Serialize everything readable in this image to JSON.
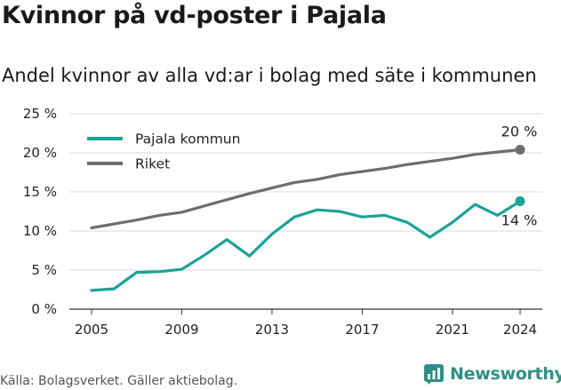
{
  "title": "Kvinnor på vd-poster i Pajala",
  "subtitle": "Andel kvinnor av alla vd:ar i bolag med säte i kommunen",
  "footer": {
    "source": "Källa: Bolagsverket. Gäller aktiebolag."
  },
  "brand": {
    "name": "Newsworthy",
    "color": "#2f8f85",
    "icon": "newsworthy-logo-icon"
  },
  "chart_data": {
    "type": "line",
    "title": "Kvinnor på vd-poster i Pajala",
    "subtitle": "Andel kvinnor av alla vd:ar i bolag med säte i kommunen",
    "xlabel": "",
    "ylabel": "",
    "x": [
      2005,
      2006,
      2007,
      2008,
      2009,
      2010,
      2011,
      2012,
      2013,
      2014,
      2015,
      2016,
      2017,
      2018,
      2019,
      2020,
      2021,
      2022,
      2023,
      2024
    ],
    "x_ticks": [
      "2005",
      "2009",
      "2013",
      "2017",
      "2021",
      "2024"
    ],
    "y_ticks": [
      "0 %",
      "5 %",
      "10 %",
      "15 %",
      "20 %",
      "25 %"
    ],
    "ylim": [
      0,
      25
    ],
    "grid": "horizontal",
    "legend_position": "top-left",
    "series": [
      {
        "name": "Pajala kommun",
        "color": "#1aa396",
        "end_label": "14 %",
        "values": [
          2.4,
          2.6,
          4.7,
          4.8,
          5.1,
          6.9,
          8.9,
          6.8,
          9.6,
          11.8,
          12.7,
          12.5,
          11.8,
          12.0,
          11.1,
          9.2,
          11.1,
          13.4,
          12.0,
          13.8
        ]
      },
      {
        "name": "Riket",
        "color": "#6d6d70",
        "end_label": "20 %",
        "values": [
          10.4,
          10.9,
          11.4,
          12.0,
          12.4,
          13.2,
          14.0,
          14.8,
          15.5,
          16.2,
          16.6,
          17.2,
          17.6,
          18.0,
          18.5,
          18.9,
          19.3,
          19.8,
          20.1,
          20.4
        ]
      }
    ]
  }
}
